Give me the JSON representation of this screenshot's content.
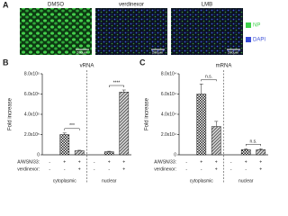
{
  "panel_a": {
    "letter": "A",
    "images": [
      {
        "label": "DMSO",
        "scale_bar": "200μm"
      },
      {
        "label": "verdinexor",
        "scale_bar": "200μm"
      },
      {
        "label": "LMB",
        "scale_bar": "200μm"
      }
    ],
    "legend": [
      {
        "name": "NP",
        "color": "#3fd24a"
      },
      {
        "name": "DAPI",
        "color": "#3b4fd8"
      }
    ]
  },
  "chart_data": [
    {
      "type": "bar",
      "letter": "B",
      "title": "vRNA",
      "y_label": "Fold increase",
      "values": [
        0,
        200000,
        40000,
        0,
        30000,
        620000
      ],
      "errors": [
        0,
        15000,
        5000,
        0,
        5000,
        20000
      ],
      "patterns": [
        "none",
        "checker",
        "stripe",
        "none",
        "checker",
        "stripe"
      ],
      "ylim": [
        0,
        800000
      ],
      "yticks": [
        0,
        {
          "value": 200000,
          "label": "2.0x10⁵"
        },
        {
          "value": 400000,
          "label": "4.0x10⁵"
        },
        {
          "value": 600000,
          "label": "6.0x10⁵"
        },
        {
          "value": 800000,
          "label": "8.0x10⁵"
        }
      ],
      "conditions": [
        {
          "name": "A/WSN/33:",
          "signs": [
            "-",
            "+",
            "+",
            "-",
            "+",
            "+"
          ]
        },
        {
          "name": "verdinexor:",
          "signs": [
            "-",
            "-",
            "+",
            "-",
            "-",
            "+"
          ]
        }
      ],
      "groups": [
        "cytoplasmic",
        "nuclear"
      ],
      "significance": [
        {
          "text": "***",
          "bars": [
            1,
            2
          ]
        },
        {
          "text": "****",
          "bars": [
            4,
            5
          ]
        }
      ]
    },
    {
      "type": "bar",
      "letter": "C",
      "title": "mRNA",
      "y_label": "Fold increase",
      "values": [
        0,
        60000,
        28000,
        0,
        5000,
        5000
      ],
      "errors": [
        0,
        10000,
        5000,
        0,
        1000,
        1000
      ],
      "patterns": [
        "none",
        "checker",
        "stripe",
        "none",
        "checker",
        "stripe"
      ],
      "ylim": [
        0,
        80000
      ],
      "yticks": [
        0,
        {
          "value": 20000,
          "label": "2.0x10⁴"
        },
        {
          "value": 40000,
          "label": "4.0x10⁴"
        },
        {
          "value": 60000,
          "label": "6.0x10⁴"
        },
        {
          "value": 80000,
          "label": "8.0x10⁴"
        }
      ],
      "conditions": [
        {
          "name": "A/WSN/33:",
          "signs": [
            "-",
            "+",
            "+",
            "-",
            "+",
            "+"
          ]
        },
        {
          "name": "verdinexor:",
          "signs": [
            "-",
            "-",
            "+",
            "-",
            "-",
            "+"
          ]
        }
      ],
      "groups": [
        "cytoplasmic",
        "nuclear"
      ],
      "significance": [
        {
          "text": "n.s.",
          "bars": [
            1,
            2
          ]
        },
        {
          "text": "n.s.",
          "bars": [
            4,
            5
          ]
        }
      ]
    }
  ]
}
